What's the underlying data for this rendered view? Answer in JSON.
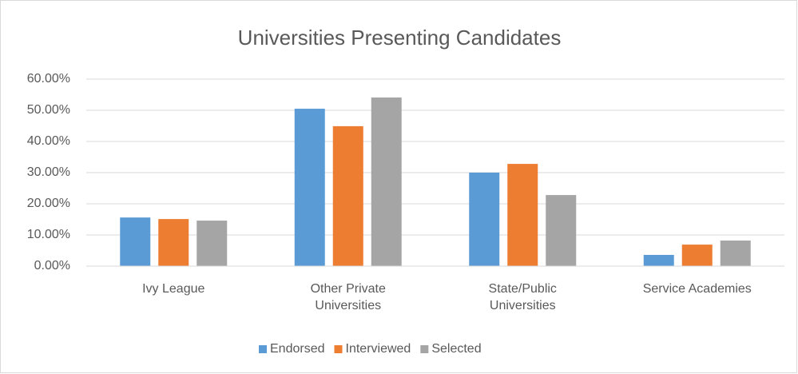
{
  "chart_data": {
    "type": "bar",
    "title": "Universities Presenting Candidates",
    "categories": [
      "Ivy League",
      "Other Private Universities",
      "State/Public Universities",
      "Service Academies"
    ],
    "series": [
      {
        "name": "Endorsed",
        "color": "#5b9bd5",
        "values": [
          15.6,
          50.5,
          30.0,
          3.6
        ]
      },
      {
        "name": "Interviewed",
        "color": "#ed7d31",
        "values": [
          15.1,
          44.9,
          32.8,
          6.9
        ]
      },
      {
        "name": "Selected",
        "color": "#a5a5a5",
        "values": [
          14.6,
          54.1,
          22.8,
          8.2
        ]
      }
    ],
    "ylim": [
      0,
      60
    ],
    "yticks": [
      {
        "value": 0,
        "label": "0.00%"
      },
      {
        "value": 10,
        "label": "10.00%"
      },
      {
        "value": 20,
        "label": "20.00%"
      },
      {
        "value": 30,
        "label": "30.00%"
      },
      {
        "value": 40,
        "label": "40.00%"
      },
      {
        "value": 50,
        "label": "50.00%"
      },
      {
        "value": 60,
        "label": "60.00%"
      }
    ],
    "grid": true,
    "legend": "bottom"
  }
}
